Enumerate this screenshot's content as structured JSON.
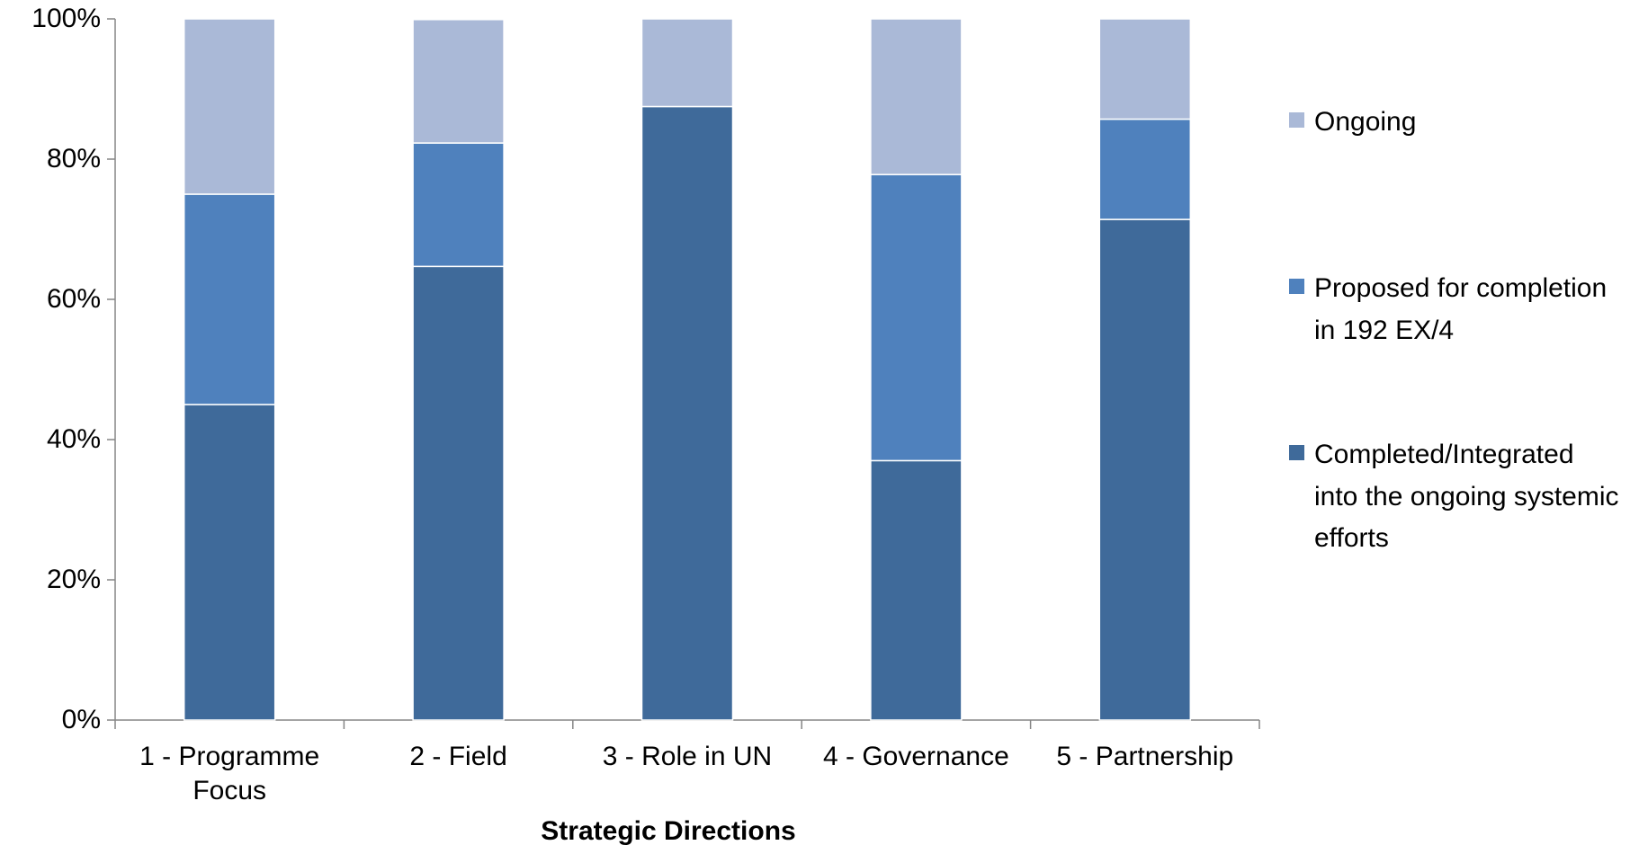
{
  "chart_data": {
    "type": "stacked_bar",
    "x_label": "Strategic Directions",
    "categories": [
      "1 - Programme Focus",
      "2 - Field",
      "3 - Role in UN",
      "4 - Governance",
      "5 - Partnership"
    ],
    "series": [
      {
        "name": "Completed/Integrated into the ongoing systemic efforts",
        "color": "#3f6a9a",
        "values": [
          45,
          64.7,
          87.5,
          37,
          71.4
        ]
      },
      {
        "name": "Proposed for completion in 192 EX/4",
        "color": "#4f81bd",
        "values": [
          30,
          17.6,
          0,
          40.8,
          14.3
        ]
      },
      {
        "name": "Ongoing",
        "color": "#aab9d7",
        "values": [
          25,
          17.6,
          12.5,
          22.2,
          14.3
        ]
      }
    ],
    "ylim": [
      0,
      100
    ],
    "yticks": [
      {
        "value": 0,
        "label": "0%"
      },
      {
        "value": 20,
        "label": "20%"
      },
      {
        "value": 40,
        "label": "40%"
      },
      {
        "value": 60,
        "label": "60%"
      },
      {
        "value": 80,
        "label": "80%"
      },
      {
        "value": 100,
        "label": "100%"
      }
    ],
    "legend": "right"
  }
}
